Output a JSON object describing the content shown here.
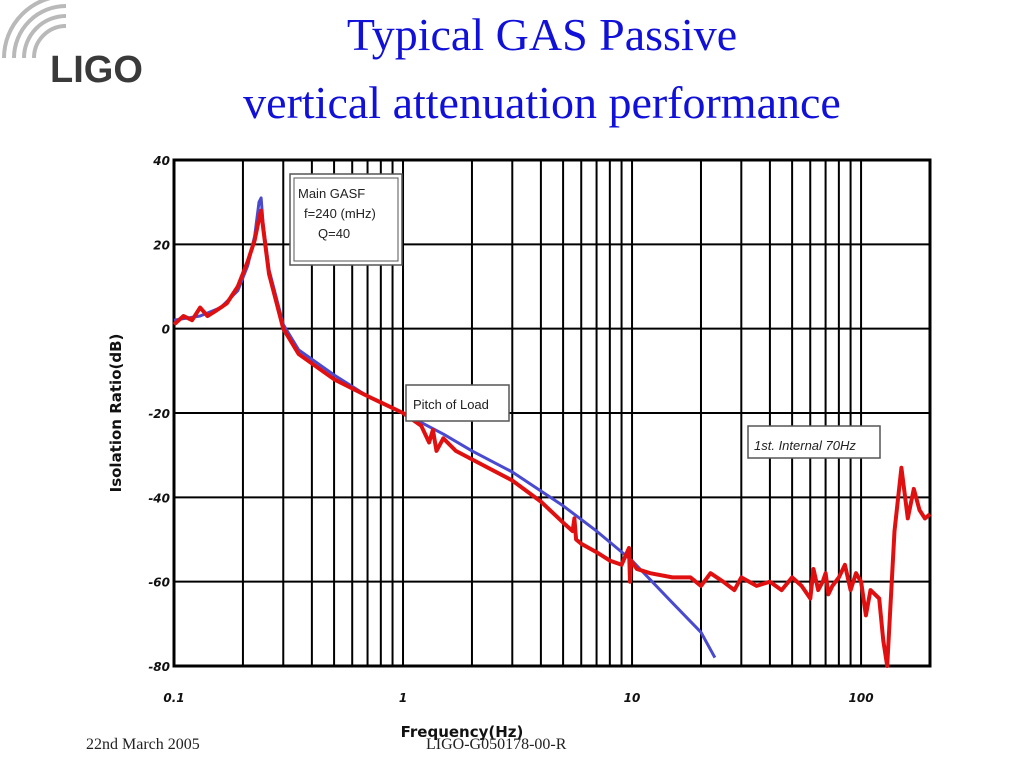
{
  "header": {
    "logo_text": "LIGO",
    "title_line1": "Typical  GAS Passive",
    "title_line2": "vertical attenuation performance"
  },
  "footer": {
    "date": "22nd March 2005",
    "doc_id": "LIGO-G050178-00-R"
  },
  "colors": {
    "title": "#1010d8",
    "measured": "#e01010",
    "model": "#4a4ad0"
  },
  "chart_data": {
    "type": "line",
    "xlabel": "Frequency(Hz)",
    "ylabel": "Isolation Ratio(dB)",
    "x_scale": "log",
    "xlim": [
      0.1,
      200
    ],
    "ylim": [
      -80,
      40
    ],
    "x_ticks": [
      0.1,
      1,
      10,
      100
    ],
    "x_tick_labels": [
      "0.1",
      "1",
      "10",
      "100"
    ],
    "y_ticks": [
      40,
      20,
      0,
      -20,
      -40,
      -60,
      -80
    ],
    "y_tick_labels": [
      "40",
      "20",
      "0",
      "-20",
      "-40",
      "-60",
      "-80"
    ],
    "grid": true,
    "annotations": [
      {
        "text": [
          "Main GASF",
          "f=240 (mHz)",
          "Q=40"
        ]
      },
      {
        "text": [
          "Pitch of Load"
        ]
      },
      {
        "text": [
          "1st. Internal 70Hz"
        ]
      }
    ],
    "series": [
      {
        "color": "#4a4ad0",
        "x": [
          0.1,
          0.13,
          0.16,
          0.19,
          0.21,
          0.225,
          0.235,
          0.24,
          0.245,
          0.26,
          0.3,
          0.35,
          0.5,
          0.7,
          1,
          1.5,
          2,
          3,
          5,
          7,
          10,
          15,
          20,
          23
        ],
        "y": [
          2,
          3,
          5,
          9,
          15,
          22,
          30,
          31,
          25,
          14,
          1,
          -5,
          -11,
          -16,
          -20,
          -25,
          -29,
          -34,
          -42,
          -48,
          -55,
          -65,
          -72,
          -78
        ]
      },
      {
        "color": "#e01010",
        "x": [
          0.1,
          0.11,
          0.12,
          0.13,
          0.14,
          0.15,
          0.16,
          0.17,
          0.19,
          0.21,
          0.225,
          0.235,
          0.24,
          0.245,
          0.26,
          0.3,
          0.35,
          0.5,
          0.7,
          1,
          1.2,
          1.3,
          1.35,
          1.4,
          1.5,
          1.7,
          2,
          3,
          4,
          5,
          5.5,
          5.6,
          5.7,
          6,
          7,
          8,
          9,
          9.7,
          9.8,
          9.9,
          10.5,
          12,
          15,
          18,
          20,
          22,
          25,
          28,
          30,
          35,
          40,
          45,
          50,
          55,
          60,
          62,
          65,
          68,
          70,
          72,
          75,
          80,
          85,
          90,
          95,
          100,
          105,
          110,
          120,
          125,
          130,
          140,
          150,
          160,
          170,
          180,
          190,
          200
        ],
        "y": [
          1,
          3,
          2,
          5,
          3,
          4,
          5,
          6,
          10,
          16,
          21,
          26,
          28,
          24,
          13,
          0,
          -6,
          -12,
          -16,
          -20,
          -23,
          -27,
          -24,
          -29,
          -26,
          -29,
          -31,
          -36,
          -41,
          -46,
          -48,
          -45,
          -50,
          -51,
          -53,
          -55,
          -56,
          -52,
          -60,
          -55,
          -57,
          -58,
          -59,
          -59,
          -61,
          -58,
          -60,
          -62,
          -59,
          -61,
          -60,
          -62,
          -59,
          -61,
          -64,
          -57,
          -62,
          -60,
          -58,
          -63,
          -61,
          -59,
          -56,
          -62,
          -58,
          -60,
          -68,
          -62,
          -64,
          -74,
          -80,
          -48,
          -33,
          -45,
          -38,
          -43,
          -45,
          -44
        ]
      }
    ]
  }
}
